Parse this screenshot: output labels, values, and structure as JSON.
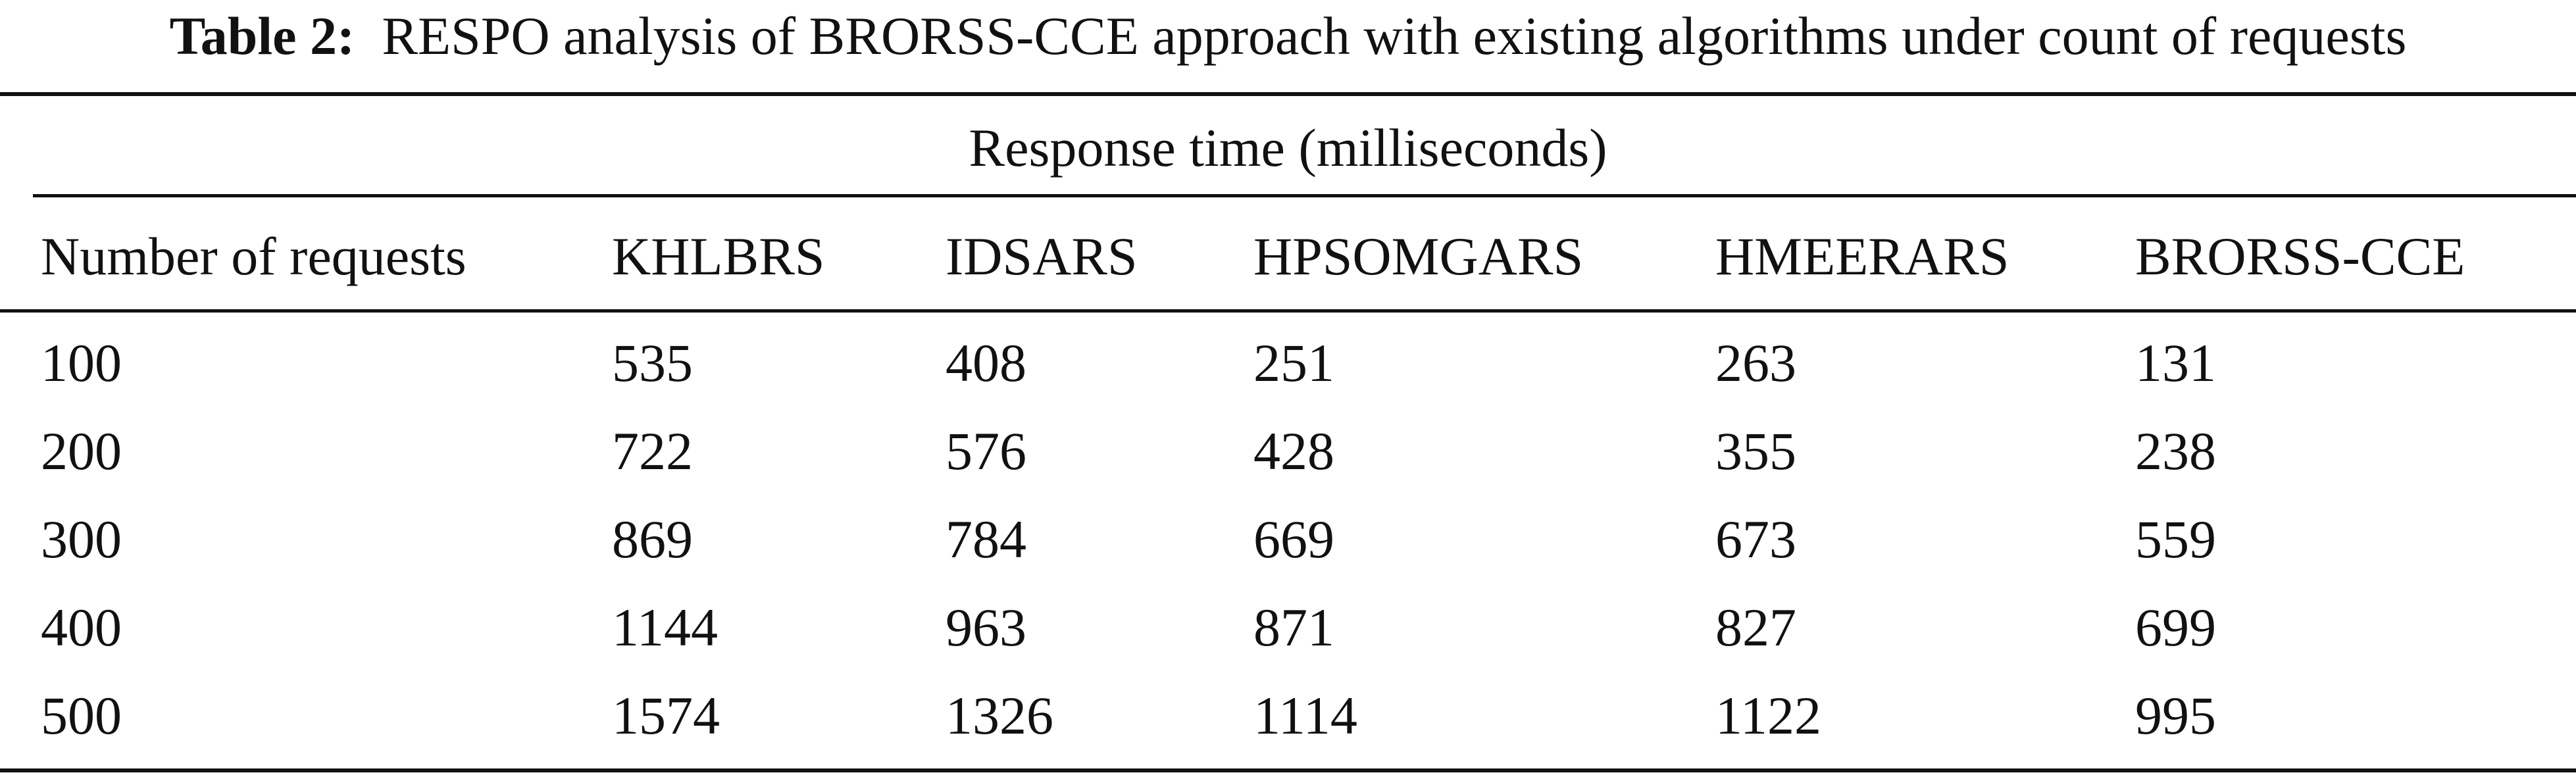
{
  "caption": {
    "label": "Table 2:",
    "text": "RESPO analysis of BRORSS-CCE approach with existing algorithms under count of requests"
  },
  "table": {
    "group_header": "Response time (milliseconds)",
    "columns": [
      "Number of requests",
      "KHLBRS",
      "IDSARS",
      "HPSOMGARS",
      "HMEERARS",
      "BRORSS-CCE"
    ],
    "rows": [
      [
        "100",
        "535",
        "408",
        "251",
        "263",
        "131"
      ],
      [
        "200",
        "722",
        "576",
        "428",
        "355",
        "238"
      ],
      [
        "300",
        "869",
        "784",
        "669",
        "673",
        "559"
      ],
      [
        "400",
        "1144",
        "963",
        "871",
        "827",
        "699"
      ],
      [
        "500",
        "1574",
        "1326",
        "1114",
        "1122",
        "995"
      ]
    ]
  }
}
